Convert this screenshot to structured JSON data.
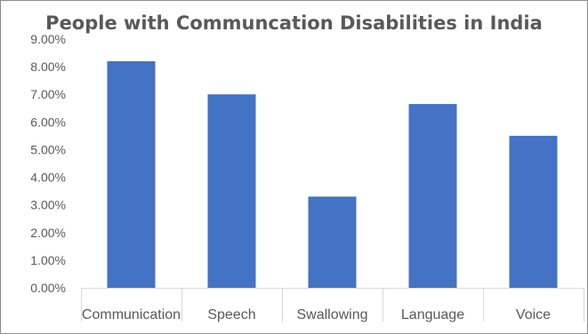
{
  "chart_data": {
    "type": "bar",
    "title": "People with Communcation Disabilities in India",
    "categories": [
      "Communication",
      "Speech",
      "Swallowing",
      "Language",
      "Voice"
    ],
    "values": [
      8.2,
      7.0,
      3.3,
      6.65,
      5.5
    ],
    "ylim": [
      0,
      9
    ],
    "yticks": [
      "0.00%",
      "1.00%",
      "2.00%",
      "3.00%",
      "4.00%",
      "5.00%",
      "6.00%",
      "7.00%",
      "8.00%",
      "9.00%"
    ],
    "grid": false,
    "legend": "none",
    "bar_color": "#4472c4",
    "axis_color": "#d9d9d9"
  }
}
